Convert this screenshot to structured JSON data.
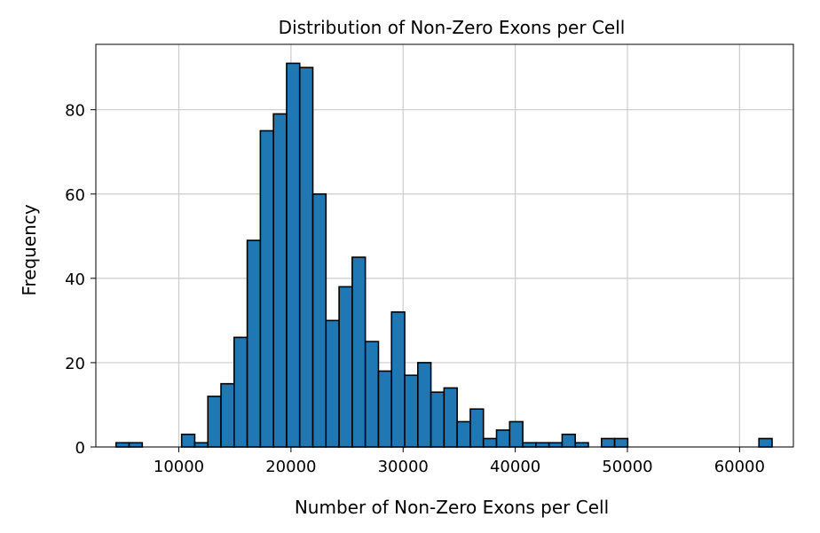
{
  "chart_data": {
    "type": "bar",
    "subtype": "histogram",
    "title": "Distribution of Non-Zero Exons per Cell",
    "xlabel": "Number of Non-Zero Exons per Cell",
    "ylabel": "Frequency",
    "xlim": [
      2600,
      64800
    ],
    "ylim": [
      0,
      95.5
    ],
    "xticks": [
      10000,
      20000,
      30000,
      40000,
      50000,
      60000
    ],
    "yticks": [
      0,
      20,
      40,
      60,
      80
    ],
    "grid": true,
    "legend": "none",
    "bar_color": "#1f77b4",
    "edge_color": "#000000",
    "bin_start": 4400,
    "bin_width": 1170,
    "values": [
      1,
      1,
      0,
      0,
      0,
      3,
      1,
      12,
      15,
      26,
      49,
      75,
      79,
      91,
      90,
      60,
      30,
      38,
      45,
      25,
      18,
      32,
      17,
      20,
      13,
      14,
      6,
      9,
      2,
      4,
      6,
      1,
      1,
      1,
      3,
      1,
      0,
      2,
      2,
      0,
      0,
      0,
      0,
      0,
      0,
      0,
      0,
      0,
      0,
      2
    ]
  }
}
